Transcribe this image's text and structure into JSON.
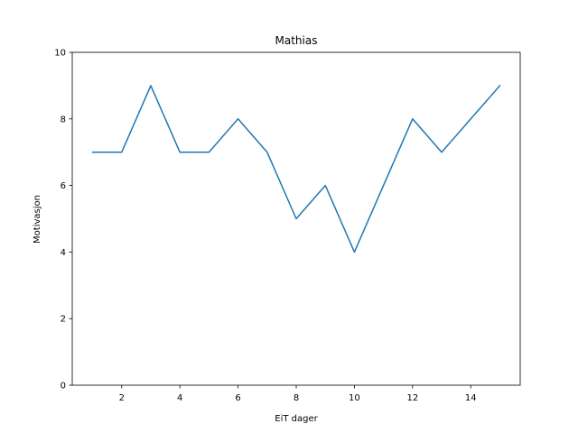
{
  "chart_data": {
    "type": "line",
    "title": "Mathias",
    "xlabel": "EiT dager",
    "ylabel": "Motivasjon",
    "x": [
      1,
      2,
      3,
      4,
      5,
      6,
      7,
      8,
      9,
      10,
      11,
      12,
      13,
      14,
      15
    ],
    "series": [
      {
        "values": [
          7,
          7,
          9,
          7,
          7,
          8,
          7,
          5,
          6,
          4,
          6,
          8,
          7,
          8,
          9
        ],
        "color": "#1f77b4"
      }
    ],
    "xlim": [
      0.3,
      15.7
    ],
    "ylim": [
      0,
      10
    ],
    "xticks": [
      2,
      4,
      6,
      8,
      10,
      12,
      14
    ],
    "yticks": [
      0,
      2,
      4,
      6,
      8,
      10
    ],
    "grid": false,
    "legend": "none"
  }
}
